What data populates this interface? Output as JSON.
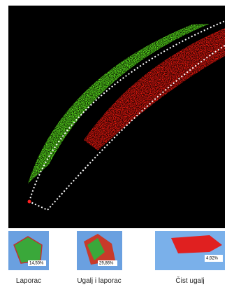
{
  "thumbnails": [
    {
      "label": "Laporac",
      "percent": "14,50%"
    },
    {
      "label": "Ugalj i laporac",
      "percent": "29,86%"
    },
    {
      "label": "Čist ugalj",
      "percent": "4,92%"
    }
  ]
}
